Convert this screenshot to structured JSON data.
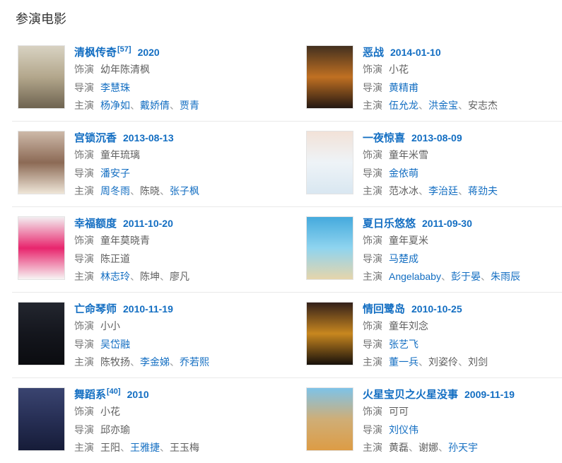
{
  "section": {
    "title": "参演电影"
  },
  "labels": {
    "role": "饰演",
    "director": "导演",
    "stars": "主演",
    "separator": "、"
  },
  "colors": {
    "link": "#136ec2",
    "text": "#5f5f5f",
    "label": "#757575",
    "sep": "#9a9a9a",
    "divider": "#e9e9e9",
    "heading": "#333333",
    "posterborder": "#e3e3e3"
  },
  "movies": [
    {
      "title": "清枫传奇",
      "ref": "[57]",
      "date": "2020",
      "role": "幼年陈清枫",
      "directors": [
        {
          "name": "李慧珠",
          "link": true
        }
      ],
      "stars": [
        {
          "name": "杨净如",
          "link": true
        },
        {
          "name": "戴娇倩",
          "link": true
        },
        {
          "name": "贾青",
          "link": true
        }
      ],
      "poster_colors": [
        "#d8d2c2",
        "#b3a78c",
        "#6e6350"
      ]
    },
    {
      "title": "恶战",
      "ref": "",
      "date": "2014-01-10",
      "role": "小花",
      "directors": [
        {
          "name": "黄精甫",
          "link": true
        }
      ],
      "stars": [
        {
          "name": "伍允龙",
          "link": true
        },
        {
          "name": "洪金宝",
          "link": true
        },
        {
          "name": "安志杰",
          "link": false
        }
      ],
      "poster_colors": [
        "#43301f",
        "#c07022",
        "#241812"
      ]
    },
    {
      "title": "宫锁沉香",
      "ref": "",
      "date": "2013-08-13",
      "role": "童年琉璃",
      "directors": [
        {
          "name": "潘安子",
          "link": true
        }
      ],
      "stars": [
        {
          "name": "周冬雨",
          "link": true
        },
        {
          "name": "陈晓",
          "link": false
        },
        {
          "name": "张子枫",
          "link": true
        }
      ],
      "poster_colors": [
        "#cdb9a9",
        "#8c6a55",
        "#efe6d8"
      ]
    },
    {
      "title": "一夜惊喜",
      "ref": "",
      "date": "2013-08-09",
      "role": "童年米雪",
      "directors": [
        {
          "name": "金依萌",
          "link": true
        }
      ],
      "stars": [
        {
          "name": "范冰冰",
          "link": false
        },
        {
          "name": "李治廷",
          "link": true
        },
        {
          "name": "蒋劲夫",
          "link": true
        }
      ],
      "poster_colors": [
        "#f2e2d8",
        "#eef3f7",
        "#d9e7f1"
      ]
    },
    {
      "title": "幸福额度",
      "ref": "",
      "date": "2011-10-20",
      "role": "童年莫晓青",
      "directors": [
        {
          "name": "陈正道",
          "link": false
        }
      ],
      "stars": [
        {
          "name": "林志玲",
          "link": true
        },
        {
          "name": "陈坤",
          "link": false
        },
        {
          "name": "廖凡",
          "link": false
        }
      ],
      "poster_colors": [
        "#f3eef0",
        "#e8256d",
        "#f7f4f4"
      ]
    },
    {
      "title": "夏日乐悠悠",
      "ref": "",
      "date": "2011-09-30",
      "role": "童年夏米",
      "directors": [
        {
          "name": "马楚成",
          "link": true
        }
      ],
      "stars": [
        {
          "name": "Angelababy",
          "link": true
        },
        {
          "name": "彭于晏",
          "link": true
        },
        {
          "name": "朱雨辰",
          "link": true
        }
      ],
      "poster_colors": [
        "#45aadd",
        "#8fd4ef",
        "#e6d5ab"
      ]
    },
    {
      "title": "亡命琴师",
      "ref": "",
      "date": "2010-11-19",
      "role": "小小",
      "directors": [
        {
          "name": "吴岱融",
          "link": true
        }
      ],
      "stars": [
        {
          "name": "陈牧扬",
          "link": false
        },
        {
          "name": "李金娣",
          "link": true
        },
        {
          "name": "乔若熙",
          "link": true
        }
      ],
      "poster_colors": [
        "#23262f",
        "#14161d",
        "#0b0c10"
      ]
    },
    {
      "title": "情回鹭岛",
      "ref": "",
      "date": "2010-10-25",
      "role": "童年刘念",
      "directors": [
        {
          "name": "张艺飞",
          "link": true
        }
      ],
      "stars": [
        {
          "name": "董一兵",
          "link": true
        },
        {
          "name": "刘姿伶",
          "link": false
        },
        {
          "name": "刘剑",
          "link": false
        }
      ],
      "poster_colors": [
        "#33201a",
        "#c8871f",
        "#17100b"
      ]
    },
    {
      "title": "舞蹈系",
      "ref": "[40]",
      "date": "2010",
      "role": "小花",
      "directors": [
        {
          "name": "邱亦瑜",
          "link": false
        }
      ],
      "stars": [
        {
          "name": "王阳",
          "link": false
        },
        {
          "name": "王雅捷",
          "link": true
        },
        {
          "name": "王玉梅",
          "link": false
        }
      ],
      "poster_colors": [
        "#3a4470",
        "#272f55",
        "#161c38"
      ]
    },
    {
      "title": "火星宝贝之火星没事",
      "ref": "",
      "date": "2009-11-19",
      "role": "可可",
      "directors": [
        {
          "name": "刘仪伟",
          "link": true
        }
      ],
      "stars": [
        {
          "name": "黄磊",
          "link": false
        },
        {
          "name": "谢娜",
          "link": false
        },
        {
          "name": "孙天宇",
          "link": true
        }
      ],
      "poster_colors": [
        "#7ec3e8",
        "#cfae77",
        "#dd9c45"
      ]
    }
  ]
}
